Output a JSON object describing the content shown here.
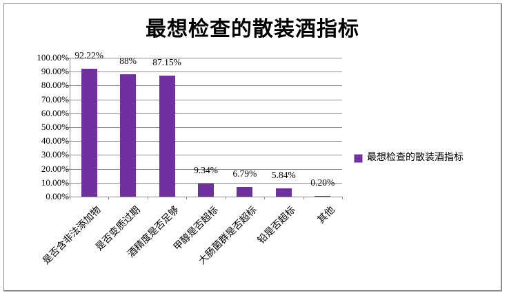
{
  "colors": {
    "bar": "#7030A0",
    "gridline": "#8E8E8E",
    "axis": "#8A8A8A",
    "frame_border": "#8A8A8A",
    "background": "#FFFFFF",
    "text": "#000000"
  },
  "chart_data": {
    "type": "bar",
    "title": "最想检查的散装酒指标",
    "categories": [
      "是否含非法添加物",
      "是否变质过期",
      "酒精度是否足够",
      "甲醇是否超标",
      "大肠菌群是否超标",
      "铅是否超标",
      "其他"
    ],
    "values": [
      92.22,
      88,
      87.15,
      9.34,
      6.79,
      5.84,
      0.2
    ],
    "data_labels": [
      "92.22%",
      "88%",
      "87.15%",
      "9.34%",
      "6.79%",
      "5.84%",
      "0.20%"
    ],
    "series_name": "最想检查的散装酒指标",
    "xlabel": "",
    "ylabel": "",
    "ylim": [
      0,
      100
    ],
    "y_tick_labels": [
      "100.00%",
      "90.00%",
      "80.00%",
      "70.00%",
      "60.00%",
      "50.00%",
      "40.00%",
      "30.00%",
      "20.00%",
      "10.00%",
      "0.00%"
    ],
    "grid": true,
    "legend": {
      "position": "right",
      "entries": [
        {
          "label": "最想检查的散装酒指标",
          "color": "#7030A0"
        }
      ]
    }
  }
}
